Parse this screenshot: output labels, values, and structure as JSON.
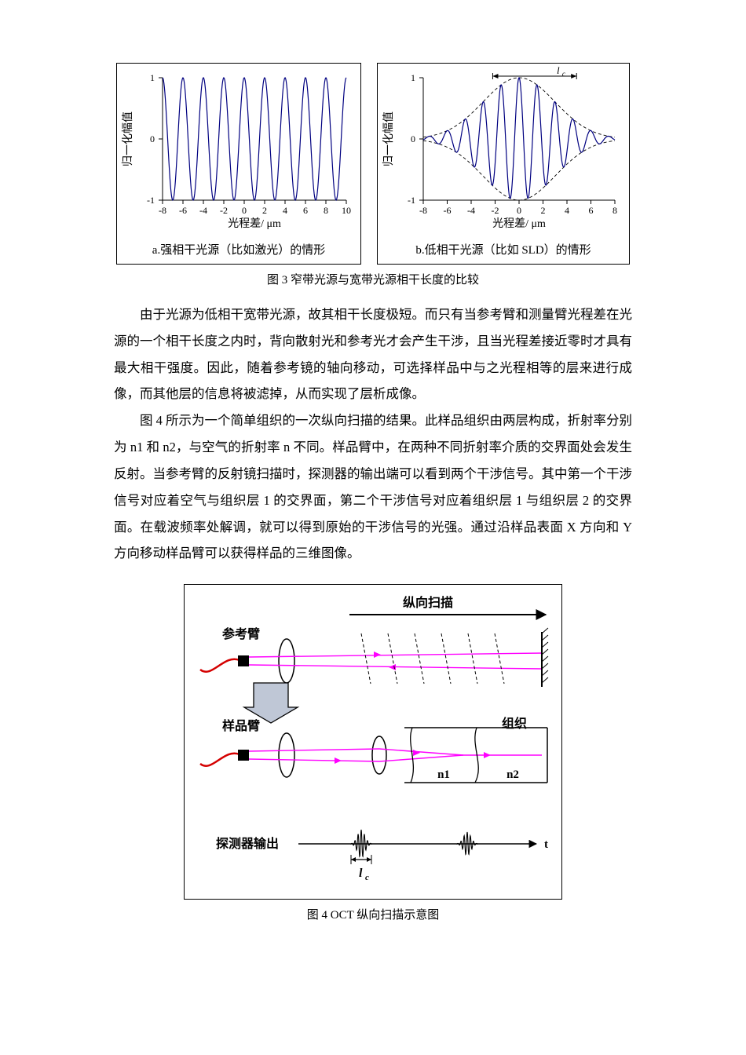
{
  "fig3": {
    "caption": "图 3  窄带光源与宽带光源相干长度的比较",
    "panel_a": {
      "sub_caption": "a.强相干光源（比如激光）的情形",
      "ylabel": "归一化幅值",
      "xlabel": "光程差/ μm",
      "xmin": -8,
      "xmax": 10,
      "xstep": 2,
      "ymin": -1,
      "ymax": 1,
      "ystep": 1,
      "xticks": [
        -8,
        -6,
        -4,
        -2,
        0,
        2,
        4,
        6,
        8,
        10
      ],
      "yticks": [
        -1,
        0,
        1
      ],
      "line_color": "#000080",
      "line_width": 1.2,
      "bg_color": "#ffffff",
      "periods": 9,
      "envelope": "none"
    },
    "panel_b": {
      "sub_caption": "b.低相干光源（比如 SLD）的情形",
      "ylabel": "归一化幅值",
      "xlabel": "光程差/ μm",
      "xmin": -8,
      "xmax": 8,
      "xstep": 2,
      "ymin": -1,
      "ymax": 1,
      "ystep": 1,
      "xticks": [
        -8,
        -6,
        -4,
        -2,
        0,
        2,
        4,
        6,
        8
      ],
      "yticks": [
        -1,
        0,
        1
      ],
      "line_color": "#000080",
      "line_width": 1.2,
      "bg_color": "#ffffff",
      "periods": 10,
      "envelope": "gaussian",
      "marker_label": "lc"
    }
  },
  "paragraph1": "由于光源为低相干宽带光源，故其相干长度极短。而只有当参考臂和测量臂光程差在光源的一个相干长度之内时，背向散射光和参考光才会产生干涉，且当光程差接近零时才具有最大相干强度。因此，随着参考镜的轴向移动，可选择样品中与之光程相等的层来进行成像，而其他层的信息将被滤掉，从而实现了层析成像。",
  "paragraph2": "图 4 所示为一个简单组织的一次纵向扫描的结果。此样品组织由两层构成，折射率分别为 n1 和 n2，与空气的折射率 n 不同。样品臂中，在两种不同折射率介质的交界面处会发生反射。当参考臂的反射镜扫描时，探测器的输出端可以看到两个干涉信号。其中第一个干涉信号对应着空气与组织层 1 的交界面，第二个干涉信号对应着组织层 1 与组织层 2 的交界面。在载波频率处解调，就可以得到原始的干涉信号的光强。通过沿样品表面 X 方向和 Y 方向移动样品臂可以获得样品的三维图像。",
  "fig4": {
    "caption": "图 4   OCT 纵向扫描示意图",
    "labels": {
      "ref_arm": "参考臂",
      "sample_arm": "样品臂",
      "tissue": "组织",
      "detector": "探测器输出",
      "scan": "纵向扫描",
      "n1": "n1",
      "n2": "n2",
      "t": "t",
      "lc": "lc"
    },
    "colors": {
      "beam": "#ff00ff",
      "fiber": "#d40000",
      "outline": "#000000",
      "arrow_fill": "#bfc7d6",
      "bg": "#ffffff"
    },
    "line_width_beam": 1.4,
    "line_width_outline": 1.5
  }
}
